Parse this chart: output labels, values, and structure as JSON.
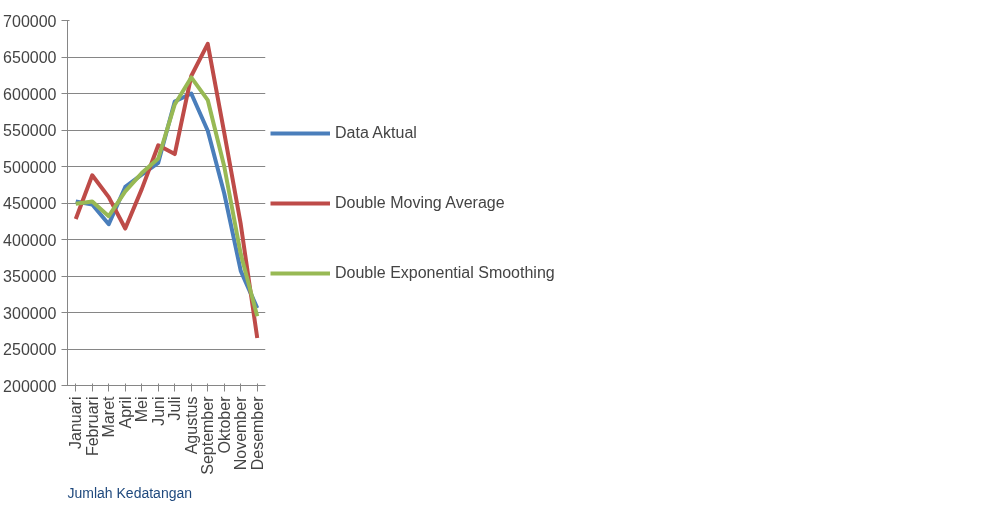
{
  "chart_data": {
    "type": "line",
    "categories": [
      "Januari",
      "Februari",
      "Maret",
      "April",
      "Mei",
      "Juni",
      "Juli",
      "Agustus",
      "September",
      "Oktober",
      "November",
      "Desember"
    ],
    "series": [
      {
        "name": "Data Aktual",
        "color": "#4a7ebb",
        "values": [
          452000,
          448000,
          421000,
          472000,
          489000,
          505000,
          589000,
          600000,
          549000,
          463000,
          357000,
          306000
        ]
      },
      {
        "name": "Double Moving Average",
        "color": "#be4b48",
        "values": [
          428000,
          488000,
          458000,
          415000,
          469000,
          529000,
          517000,
          624000,
          668000,
          546000,
          421000,
          265000
        ]
      },
      {
        "name": "Double Exponential Smoothing",
        "color": "#98b954",
        "values": [
          449000,
          452000,
          432000,
          466000,
          491000,
          511000,
          585000,
          622000,
          591000,
          500000,
          380000,
          295000
        ]
      }
    ],
    "ylim": [
      200000,
      700000
    ],
    "yticks": [
      200000,
      250000,
      300000,
      350000,
      400000,
      450000,
      500000,
      550000,
      600000,
      650000,
      700000
    ],
    "grid": "y",
    "legend": "right",
    "marker": "none",
    "line_style": "solid",
    "annotations": [
      "Jumlah Kedatangan"
    ]
  }
}
